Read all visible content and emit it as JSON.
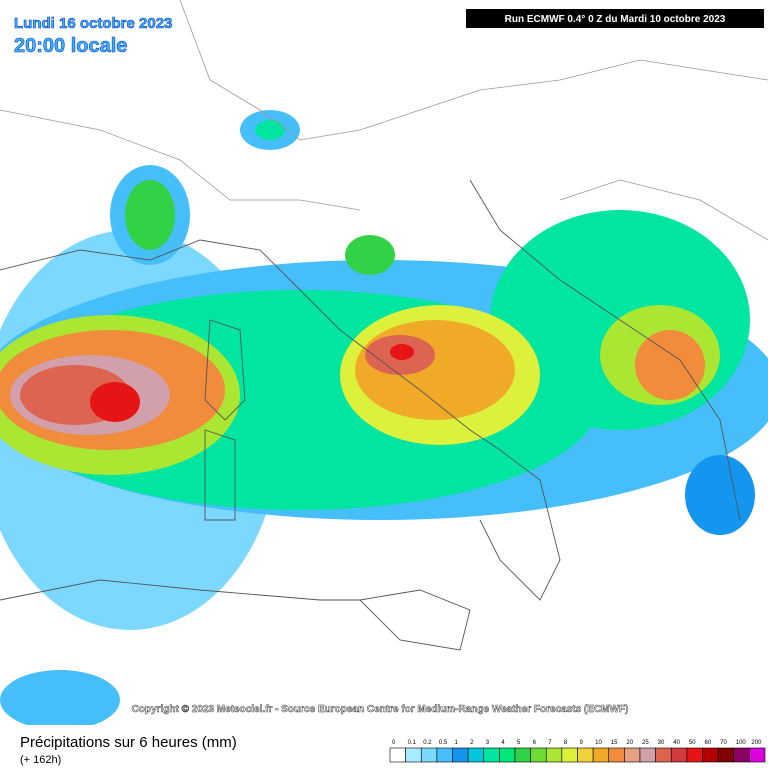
{
  "header": {
    "date": "Lundi 16 octobre 2023",
    "time": "20:00 locale",
    "run": "Run ECMWF 0.4° 0 Z du Mardi 10 octobre 2023"
  },
  "credit": "Copyright © 2023 Meteociel.fr - Source European Centre for Medium-Range Weather Forecasts (ECMWF)",
  "legend": {
    "title": "Précipitations sur 6 heures (mm)",
    "lead": "(+ 162h)",
    "labels": [
      0,
      0.1,
      0.2,
      0.5,
      1,
      2,
      3,
      4,
      5,
      6,
      7,
      8,
      9,
      10,
      15,
      20,
      25,
      30,
      40,
      50,
      60,
      70,
      100,
      200
    ],
    "colors": [
      "#ffffff",
      "#a8ecff",
      "#7cd8ff",
      "#46befa",
      "#1496f0",
      "#00c8dc",
      "#00e6a0",
      "#00e678",
      "#32d246",
      "#6edc32",
      "#aae632",
      "#dcf03c",
      "#f0d23c",
      "#f0aa28",
      "#f08c3c",
      "#e6a082",
      "#d2a0aa",
      "#dc6450",
      "#d23c3c",
      "#e61414",
      "#b40000",
      "#820000",
      "#8c0064",
      "#dc00dc"
    ]
  }
}
